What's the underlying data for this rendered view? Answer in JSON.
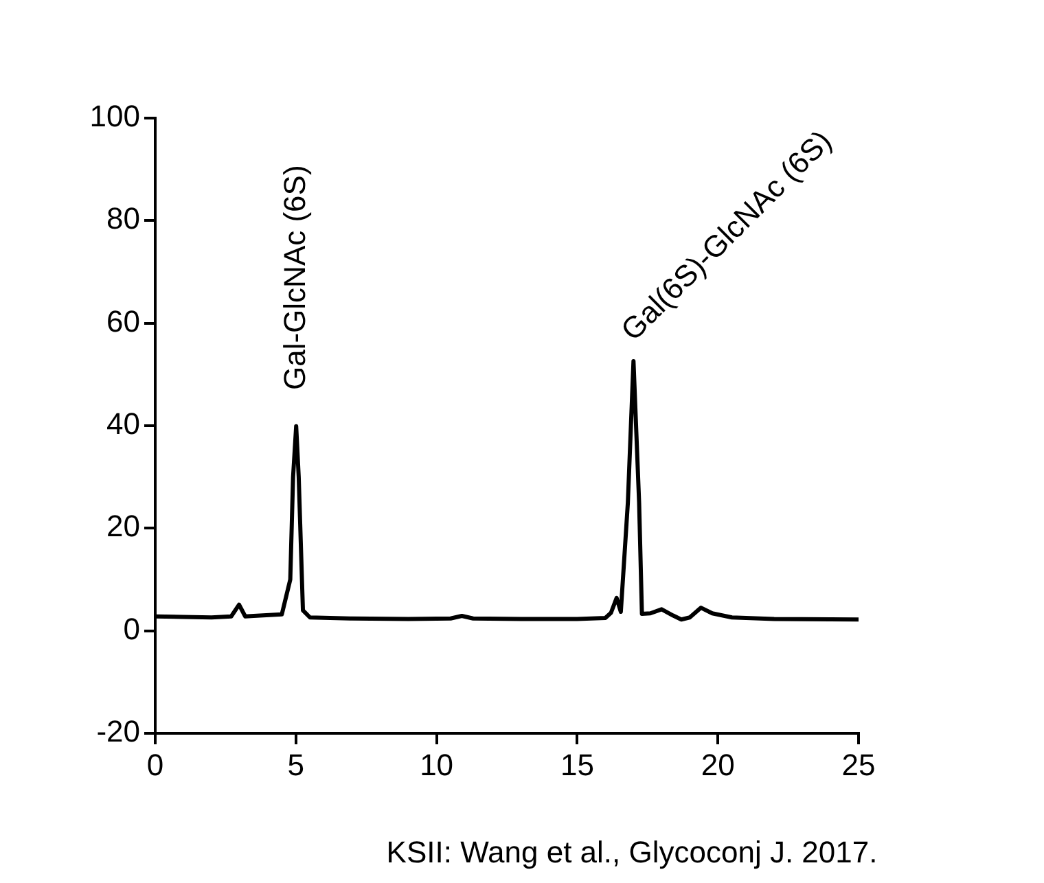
{
  "chart_data": {
    "type": "line",
    "x": [
      0,
      1,
      2,
      2.7,
      2.98,
      3.2,
      3.5,
      4.5,
      4.8,
      4.9,
      5.01,
      5.1,
      5.25,
      5.5,
      7,
      9,
      10.5,
      10.9,
      11.3,
      13,
      15,
      16,
      16.2,
      16.4,
      16.55,
      16.8,
      17.0,
      17.2,
      17.3,
      17.6,
      18.0,
      18.4,
      18.7,
      19.0,
      19.4,
      19.8,
      20.5,
      22,
      25
    ],
    "values": [
      2.8,
      2.7,
      2.6,
      2.8,
      5.1,
      2.8,
      2.9,
      3.2,
      10,
      30,
      39.9,
      30,
      4,
      2.6,
      2.4,
      2.3,
      2.4,
      2.9,
      2.4,
      2.3,
      2.3,
      2.5,
      3.5,
      6.4,
      3.7,
      25,
      52.6,
      25,
      3.3,
      3.4,
      4.2,
      3.0,
      2.2,
      2.6,
      4.5,
      3.4,
      2.6,
      2.3,
      2.2
    ],
    "color": "#000000",
    "line_style": "solid",
    "marker": "none",
    "grid": false,
    "xlim": [
      0,
      25
    ],
    "xticks": [
      0,
      5,
      10,
      15,
      20,
      25
    ],
    "ylim": [
      -20,
      100
    ],
    "yticks": [
      -20,
      0,
      20,
      40,
      60,
      80,
      100
    ],
    "annotations": [
      "Gal-GlcNAc (6S)",
      "Gal(6S)-GlcNAc (6S)",
      "KSII: Wang et al., Glycoconj J. 2017."
    ]
  }
}
